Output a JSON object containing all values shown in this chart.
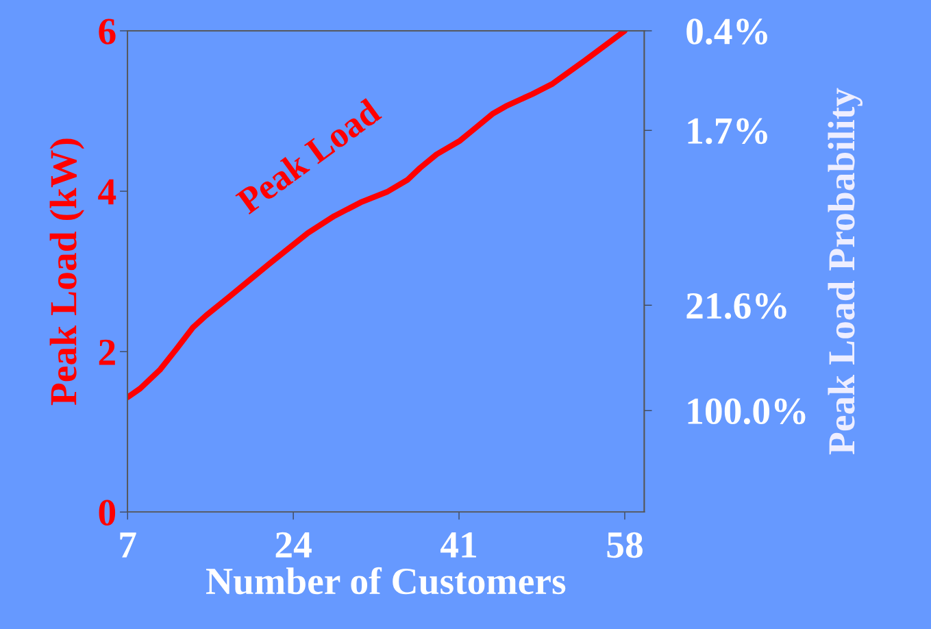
{
  "chart_data": {
    "type": "line",
    "xlabel": "Number of Customers",
    "ylabel": "Peak Load (kW)",
    "y2label": "Peak Load Probability",
    "x": [
      7,
      8.3,
      10.3,
      12,
      13.7,
      15.05,
      17.4,
      21.5,
      25.5,
      28.2,
      30.9,
      33.6,
      35.7,
      37,
      38.7,
      41.1,
      42.4,
      44.5,
      45.8,
      48.5,
      50.6,
      53.9,
      58
    ],
    "series": [
      {
        "name": "Peak Load",
        "color": "#ff0000",
        "values": [
          1.43,
          1.54,
          1.77,
          2.03,
          2.3,
          2.45,
          2.68,
          3.09,
          3.48,
          3.69,
          3.86,
          3.99,
          4.14,
          4.29,
          4.46,
          4.63,
          4.76,
          4.97,
          5.06,
          5.21,
          5.34,
          5.63,
          6.0
        ]
      }
    ],
    "xlim": [
      7,
      60
    ],
    "xticks": [
      7,
      24,
      41,
      58
    ],
    "ylim": [
      0,
      6
    ],
    "yticks": [
      0,
      2,
      4,
      6
    ],
    "y2lim": [
      437,
      0.4
    ],
    "y2ticks": [
      {
        "value": 0.4,
        "label": "0.4%"
      },
      {
        "value": 1.7,
        "label": "1.7%"
      },
      {
        "value": 21.6,
        "label": "21.6%"
      },
      {
        "value": 100,
        "label": "100.0%"
      }
    ],
    "log": "y2",
    "grid": false,
    "legend": false,
    "marker": "none",
    "line_style": "solid"
  }
}
